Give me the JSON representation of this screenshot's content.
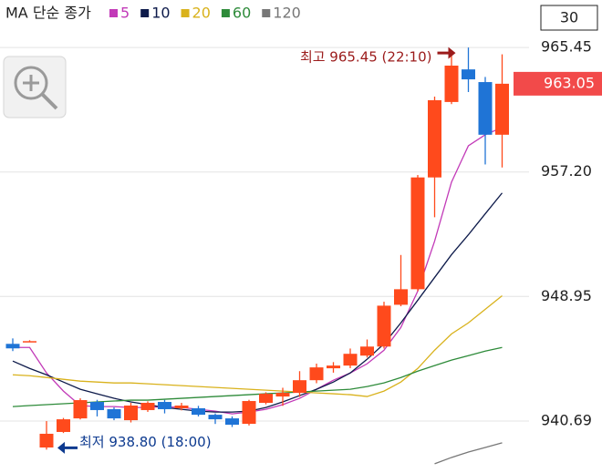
{
  "chart_data": {
    "type": "candlestick",
    "legend_title": "MA 단순 종가",
    "period": "30",
    "ylim": [
      937.25,
      968.6
    ],
    "yticks": [
      940.69,
      948.95,
      {
        "value": 957.2,
        "label": "957.20"
      },
      965.45
    ],
    "grid": true,
    "up_color": "#ff4a1c",
    "down_color": "#1f74d6",
    "open": [
      945.81,
      945.99,
      938.94,
      939.97,
      940.87,
      941.96,
      941.48,
      940.75,
      941.42,
      941.96,
      941.54,
      941.54,
      941.11,
      940.87,
      940.51,
      941.9,
      942.32,
      942.56,
      943.4,
      944.19,
      944.37,
      945.03,
      945.63,
      948.4,
      949.43,
      956.84,
      961.84,
      964.0,
      963.16,
      959.67
    ],
    "high": [
      946.17,
      946.05,
      940.69,
      940.9,
      942.2,
      942.1,
      941.6,
      941.9,
      942.0,
      942.1,
      941.9,
      941.7,
      941.2,
      941.0,
      942.1,
      942.6,
      942.9,
      944.0,
      944.5,
      944.6,
      945.5,
      946.1,
      948.6,
      951.7,
      957.0,
      962.2,
      965.0,
      965.45,
      963.5,
      965.0
    ],
    "low": [
      945.33,
      945.93,
      938.8,
      939.9,
      940.8,
      941.0,
      940.75,
      940.6,
      941.3,
      941.2,
      941.4,
      941.0,
      940.5,
      940.3,
      940.4,
      941.8,
      941.7,
      942.3,
      943.2,
      943.9,
      944.2,
      944.9,
      945.5,
      948.3,
      949.3,
      954.2,
      961.7,
      962.5,
      957.7,
      957.5
    ],
    "close": [
      945.51,
      945.99,
      939.85,
      940.81,
      942.08,
      941.42,
      940.87,
      941.72,
      941.9,
      941.48,
      941.72,
      941.11,
      940.81,
      940.45,
      942.02,
      942.5,
      942.56,
      943.4,
      944.25,
      944.37,
      945.15,
      945.63,
      948.34,
      949.43,
      956.84,
      961.96,
      964.25,
      963.34,
      959.67,
      963.05
    ],
    "ma_series": [
      {
        "name": "5",
        "color": "#c23ab8",
        "values": [
          945.57,
          945.57,
          943.88,
          942.68,
          941.72,
          941.65,
          941.65,
          941.59,
          941.59,
          941.65,
          941.59,
          941.47,
          941.35,
          941.17,
          941.29,
          941.47,
          941.78,
          942.2,
          942.8,
          943.4,
          943.88,
          944.49,
          945.39,
          946.9,
          949.31,
          952.62,
          956.53,
          958.94,
          959.67,
          960.15
        ]
      },
      {
        "name": "10",
        "color": "#0d1a4a",
        "values": [
          944.67,
          944.18,
          943.76,
          943.28,
          942.8,
          942.5,
          942.2,
          941.96,
          941.78,
          941.59,
          941.47,
          941.35,
          941.29,
          941.29,
          941.35,
          941.59,
          941.96,
          942.38,
          942.8,
          943.28,
          943.88,
          944.79,
          945.81,
          947.2,
          948.7,
          950.21,
          951.72,
          953.04,
          954.43,
          955.81
        ]
      },
      {
        "name": "20",
        "color": "#d9b21c",
        "values": [
          943.76,
          943.7,
          943.58,
          943.46,
          943.34,
          943.28,
          943.22,
          943.22,
          943.16,
          943.1,
          943.04,
          942.98,
          942.92,
          942.86,
          942.8,
          942.74,
          942.68,
          942.62,
          942.56,
          942.5,
          942.44,
          942.32,
          942.68,
          943.28,
          944.18,
          945.39,
          946.47,
          947.2,
          948.1,
          949.0
        ]
      },
      {
        "name": "60",
        "color": "#2e8b3a",
        "values": [
          941.65,
          941.72,
          941.78,
          941.84,
          941.9,
          941.96,
          942.02,
          942.08,
          942.08,
          942.14,
          942.2,
          942.26,
          942.32,
          942.38,
          942.44,
          942.5,
          942.56,
          942.62,
          942.68,
          942.74,
          942.8,
          942.98,
          943.22,
          943.58,
          944.0,
          944.37,
          944.73,
          945.03,
          945.33,
          945.57
        ]
      },
      {
        "name": "120",
        "color": "#777777",
        "values": [
          null,
          null,
          null,
          null,
          null,
          null,
          null,
          null,
          null,
          null,
          null,
          null,
          null,
          null,
          null,
          null,
          null,
          null,
          null,
          null,
          null,
          null,
          null,
          null,
          null,
          937.86,
          938.28,
          938.64,
          938.94,
          939.25
        ]
      }
    ],
    "last_price": {
      "value": 963.05,
      "label": "963.05",
      "color": "#f24a4a"
    },
    "high_annotation": {
      "text": "최고 965.45 (22:10)",
      "color": "#9b1b1b"
    },
    "low_annotation": {
      "text": "최저 938.80 (18:00)",
      "color": "#0d3a8f"
    }
  }
}
